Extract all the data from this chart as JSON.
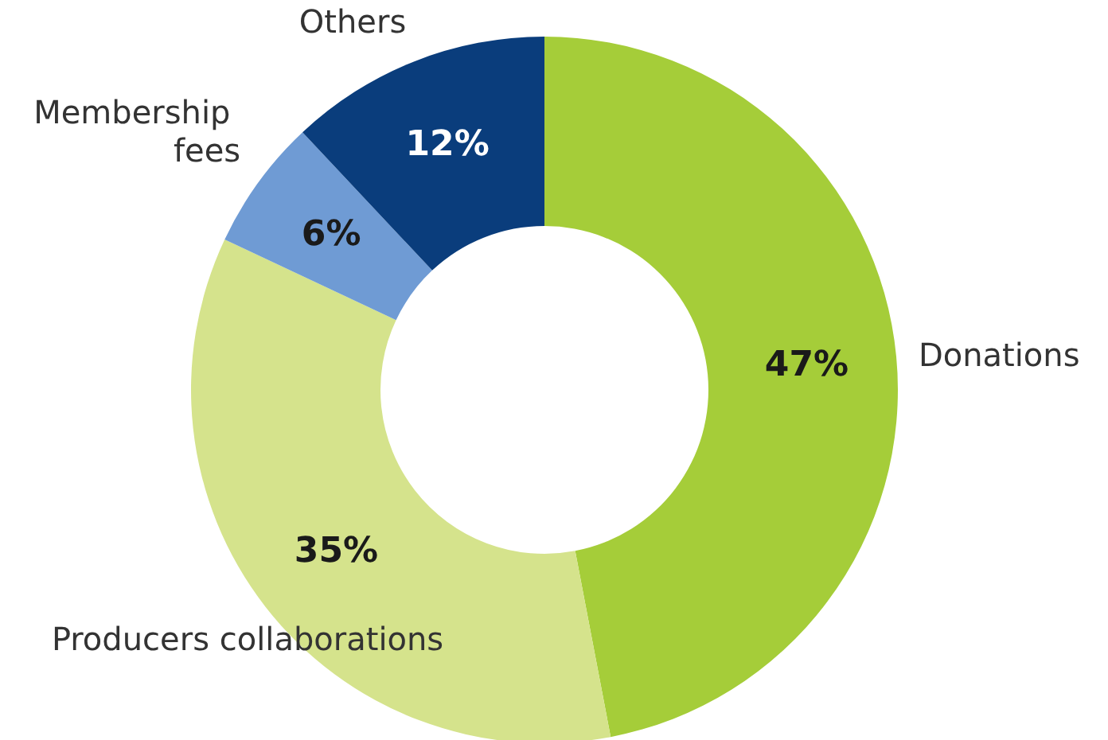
{
  "chart_data": {
    "type": "donut",
    "categories": [
      "Donations",
      "Producers collaborations",
      "Membership fees",
      "Others"
    ],
    "values": [
      47,
      35,
      6,
      12
    ],
    "colors": [
      "#a5cd39",
      "#d5e38c",
      "#6f9bd4",
      "#0a3d7c"
    ],
    "value_labels": [
      "47%",
      "35%",
      "6%",
      "12%"
    ],
    "legend": false
  }
}
